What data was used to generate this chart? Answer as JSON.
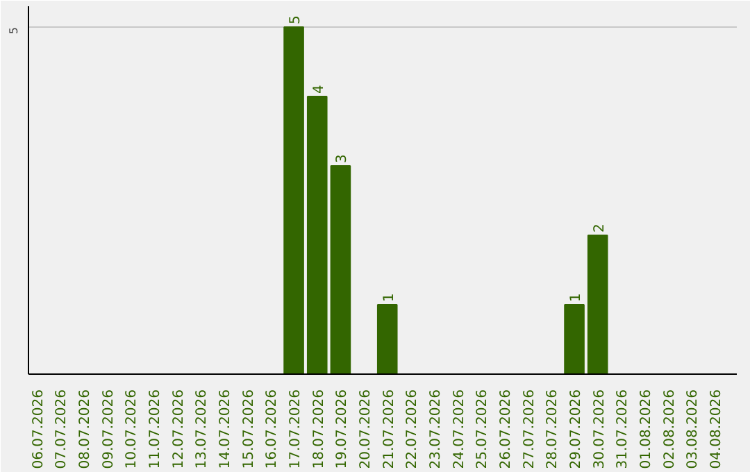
{
  "chart_data": {
    "type": "bar",
    "categories": [
      "06.07.2026",
      "07.07.2026",
      "08.07.2026",
      "09.07.2026",
      "10.07.2026",
      "11.07.2026",
      "12.07.2026",
      "13.07.2026",
      "14.07.2026",
      "15.07.2026",
      "16.07.2026",
      "17.07.2026",
      "18.07.2026",
      "19.07.2026",
      "20.07.2026",
      "21.07.2026",
      "22.07.2026",
      "23.07.2026",
      "24.07.2026",
      "25.07.2026",
      "26.07.2026",
      "27.07.2026",
      "28.07.2026",
      "29.07.2026",
      "30.07.2026",
      "31.07.2026",
      "01.08.2026",
      "02.08.2026",
      "03.08.2026",
      "04.08.2026"
    ],
    "values": [
      0,
      0,
      0,
      0,
      0,
      0,
      0,
      0,
      0,
      0,
      0,
      5,
      4,
      3,
      0,
      1,
      0,
      0,
      0,
      0,
      0,
      0,
      0,
      1,
      2,
      0,
      0,
      0,
      0,
      0
    ],
    "value_labels": [
      null,
      null,
      null,
      null,
      null,
      null,
      null,
      null,
      null,
      null,
      null,
      "5",
      "4",
      "3",
      null,
      "1",
      null,
      null,
      null,
      null,
      null,
      null,
      null,
      "1",
      "2",
      null,
      null,
      null,
      null,
      null
    ],
    "color": "#336600",
    "ylim": [
      0,
      5.3
    ],
    "yticks": [
      5
    ],
    "grid": "y"
  }
}
